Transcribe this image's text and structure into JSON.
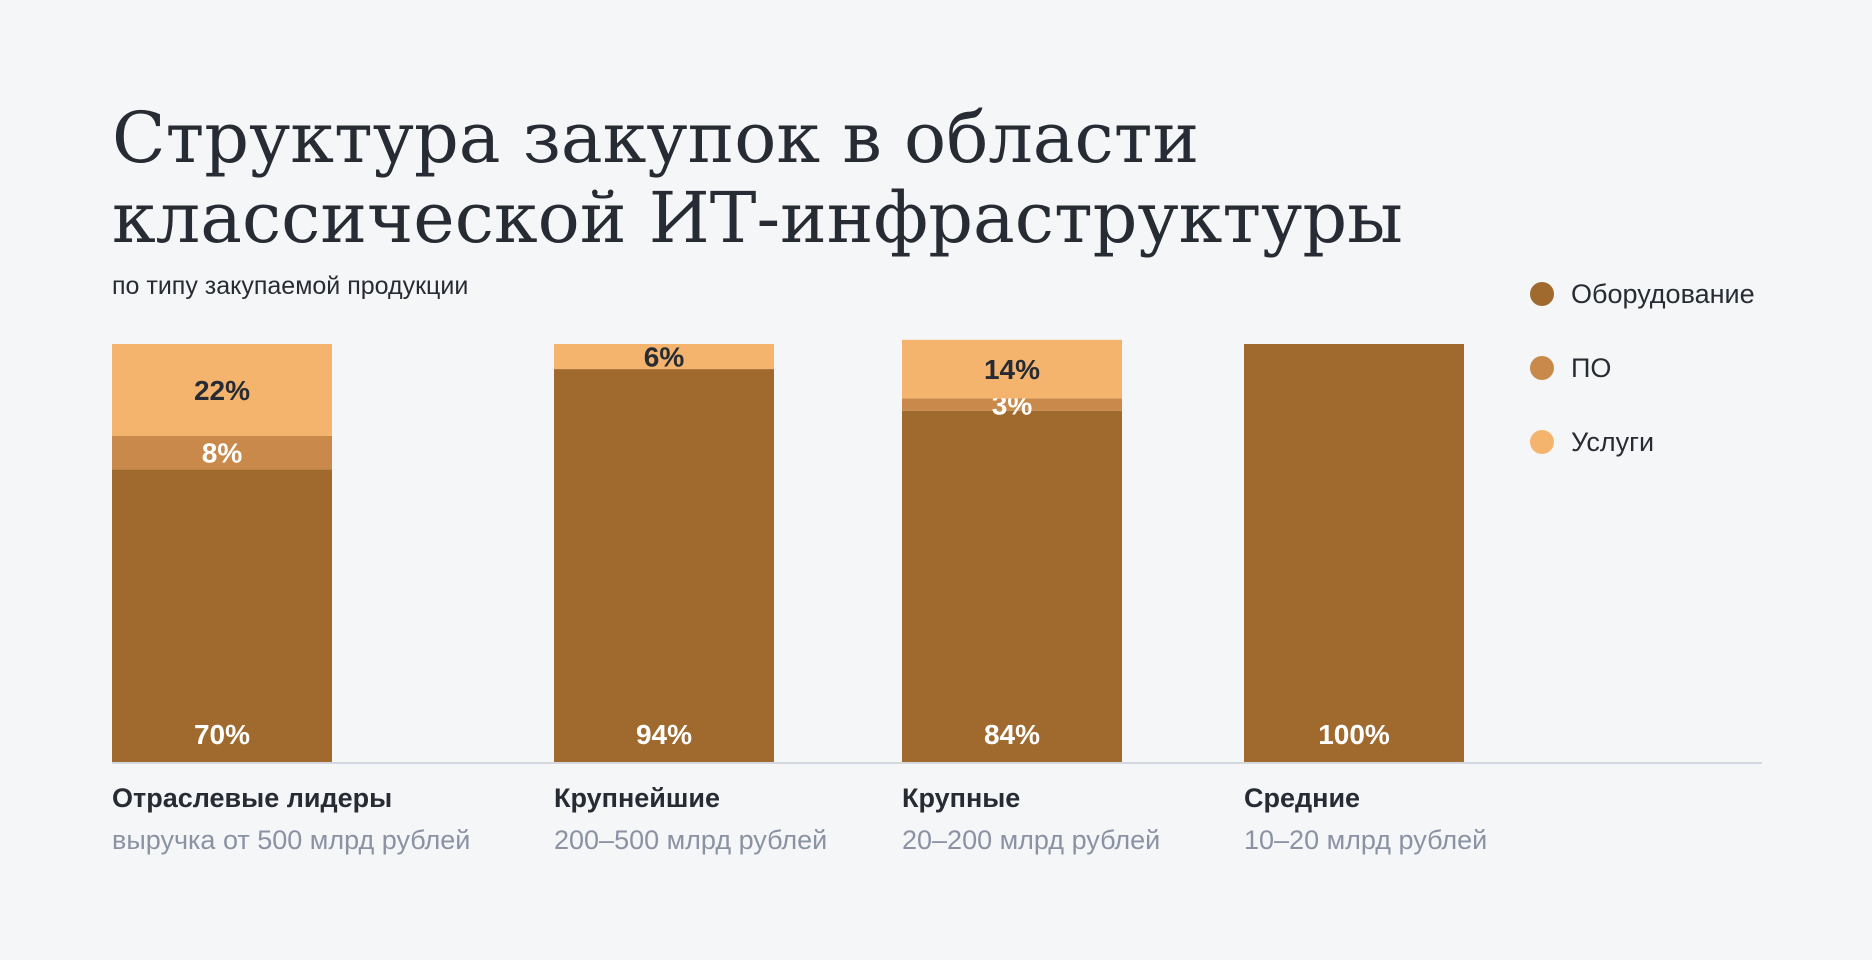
{
  "title_line1": "Структура закупок в области",
  "title_line2": "классической ИТ-инфраструктуры",
  "subtitle": "по типу закупаемой продукции",
  "legend": [
    {
      "label": "Оборудование",
      "color": "#a06a2e"
    },
    {
      "label": "ПО",
      "color": "#c8894a"
    },
    {
      "label": "Услуги",
      "color": "#f4b46d"
    }
  ],
  "chart_data": {
    "type": "bar",
    "stacked": true,
    "unit": "%",
    "ylim": [
      0,
      100
    ],
    "categories": [
      {
        "name": "Отраслевые лидеры",
        "sub": "выручка от 500 млрд рублей"
      },
      {
        "name": "Крупнейшие",
        "sub": "200–500 млрд рублей"
      },
      {
        "name": "Крупные",
        "sub": "20–200 млрд рублей"
      },
      {
        "name": "Средние",
        "sub": "10–20 млрд рублей"
      }
    ],
    "series": [
      {
        "name": "Оборудование",
        "color": "#a06a2e",
        "values": [
          70,
          94,
          84,
          100
        ]
      },
      {
        "name": "ПО",
        "color": "#c8894a",
        "values": [
          8,
          0,
          3,
          0
        ]
      },
      {
        "name": "Услуги",
        "color": "#f4b46d",
        "values": [
          22,
          6,
          14,
          0
        ]
      }
    ],
    "legend_position": "top-right",
    "grid": false
  }
}
